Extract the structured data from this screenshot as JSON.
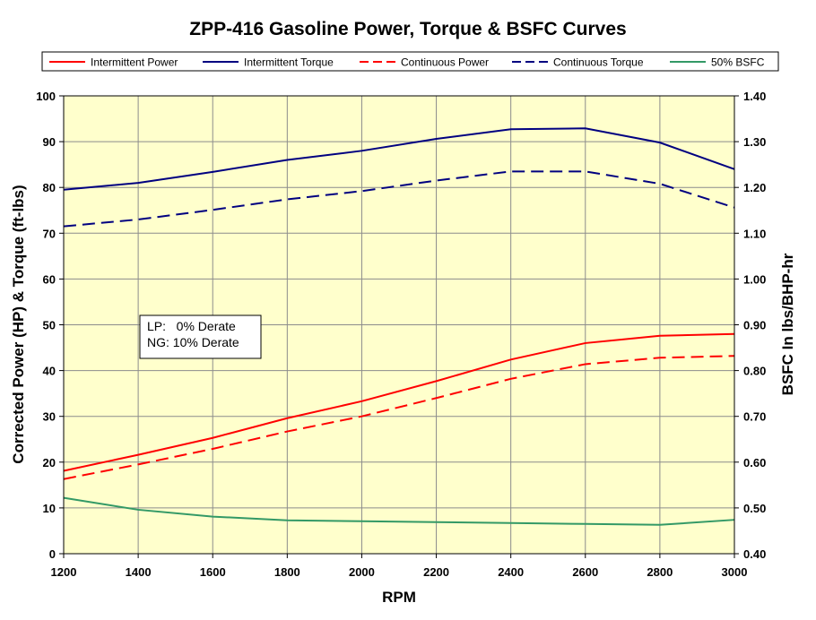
{
  "chart_data": {
    "type": "line",
    "title": "ZPP-416  Gasoline  Power, Torque  & BSFC Curves",
    "xlabel": "RPM",
    "ylabel": "Corrected Power (HP) & Torque (ft-lbs)",
    "y2label": "BSFC In lbs/BHP-hr",
    "x": [
      1200,
      1400,
      1600,
      1800,
      2000,
      2200,
      2400,
      2600,
      2800,
      3000
    ],
    "xlim": [
      1200,
      3000
    ],
    "ylim": [
      0,
      100
    ],
    "y2lim": [
      0.4,
      1.4
    ],
    "xticks": [
      "1200",
      "1400",
      "1600",
      "1800",
      "2000",
      "2200",
      "2400",
      "2600",
      "2800",
      "3000"
    ],
    "yticks": [
      "0",
      "10",
      "20",
      "30",
      "40",
      "50",
      "60",
      "70",
      "80",
      "90",
      "100"
    ],
    "y2ticks": [
      "0.40",
      "0.50",
      "0.60",
      "0.70",
      "0.80",
      "0.90",
      "1.00",
      "1.10",
      "1.20",
      "1.30",
      "1.40"
    ],
    "grid": true,
    "plot_background": "#ffffcc",
    "legend_position": "top",
    "annotation": [
      "LP:   0% Derate",
      "NG: 10% Derate"
    ],
    "series": [
      {
        "name": "Intermittent Power",
        "axis": "left",
        "color": "#ff0000",
        "dash": "solid",
        "values": [
          18.1,
          21.6,
          25.3,
          29.6,
          33.3,
          37.7,
          42.4,
          46.0,
          47.6,
          48.0
        ]
      },
      {
        "name": "Intermittent Torque",
        "axis": "left",
        "color": "#000080",
        "dash": "solid",
        "values": [
          79.5,
          81.0,
          83.4,
          86.0,
          88.0,
          90.6,
          92.7,
          92.9,
          89.8,
          84.0
        ]
      },
      {
        "name": "Continuous Power",
        "axis": "left",
        "color": "#ff0000",
        "dash": "dashed",
        "values": [
          16.3,
          19.5,
          22.9,
          26.7,
          30.0,
          34.0,
          38.2,
          41.4,
          42.8,
          43.2
        ]
      },
      {
        "name": "Continuous Torque",
        "axis": "left",
        "color": "#000080",
        "dash": "dashed",
        "values": [
          71.5,
          73.0,
          75.1,
          77.4,
          79.2,
          81.5,
          83.5,
          83.5,
          80.8,
          75.6
        ]
      },
      {
        "name": "50% BSFC",
        "axis": "right",
        "color": "#339966",
        "dash": "solid",
        "values": [
          0.522,
          0.496,
          0.481,
          0.473,
          0.471,
          0.469,
          0.467,
          0.465,
          0.463,
          0.474
        ]
      }
    ]
  }
}
